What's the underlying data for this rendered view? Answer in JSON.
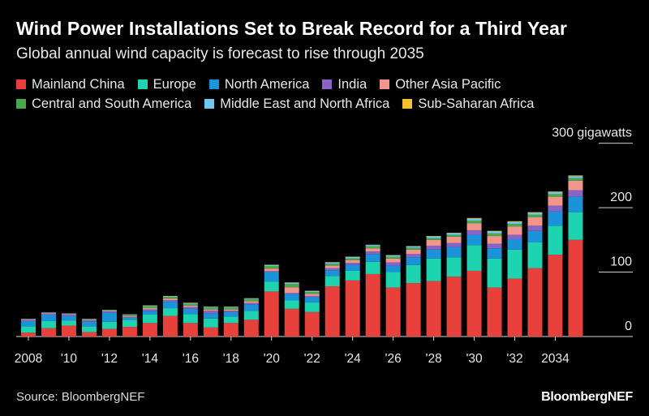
{
  "header": {
    "title": "Wind Power Installations Set to Break Record for a Third Year",
    "subtitle": "Global annual wind capacity is forecast to rise through 2035"
  },
  "footer": {
    "source": "Source: BloombergNEF",
    "brand": "BloombergNEF"
  },
  "chart_data": {
    "type": "bar",
    "stacked": true,
    "title": "Wind Power Installations Set to Break Record for a Third Year",
    "subtitle": "Global annual wind capacity is forecast to rise through 2035",
    "xlabel": "",
    "ylabel": "",
    "unit_label": "300 gigawatts",
    "ylim": [
      0,
      300
    ],
    "yticks": [
      0,
      100,
      200
    ],
    "xtick_labels": [
      "2008",
      "'10",
      "'12",
      "'14",
      "'16",
      "'18",
      "'20",
      "'22",
      "'24",
      "'26",
      "'28",
      "'30",
      "'32",
      "2034"
    ],
    "legend_position": "top",
    "categories": [
      "2008",
      "2009",
      "2010",
      "2011",
      "2012",
      "2013",
      "2014",
      "2015",
      "2016",
      "2017",
      "2018",
      "2019",
      "2020",
      "2021",
      "2022",
      "2023",
      "2024",
      "2025",
      "2026",
      "2027",
      "2028",
      "2029",
      "2030",
      "2031",
      "2032",
      "2033",
      "2034",
      "2035"
    ],
    "series": [
      {
        "name": "Mainland China",
        "color": "#e8403a",
        "values": [
          6,
          13,
          17,
          7,
          12,
          15,
          21,
          32,
          21,
          14,
          21,
          26,
          70,
          43,
          38,
          78,
          87,
          97,
          76,
          83,
          86,
          93,
          102,
          76,
          90,
          106,
          127,
          150
        ]
      },
      {
        "name": "Europe",
        "color": "#1ed3b0",
        "values": [
          10,
          11,
          8,
          9,
          11,
          11,
          13,
          12,
          14,
          14,
          10,
          14,
          15,
          13,
          15,
          16,
          15,
          19,
          24,
          28,
          35,
          30,
          40,
          45,
          45,
          40,
          45,
          43
        ]
      },
      {
        "name": "North America",
        "color": "#1a93d8",
        "values": [
          8,
          10,
          7,
          7,
          14,
          3,
          6,
          10,
          8,
          8,
          7,
          10,
          15,
          10,
          8,
          9,
          9,
          12,
          10,
          12,
          14,
          16,
          16,
          16,
          16,
          18,
          22,
          24
        ]
      },
      {
        "name": "India",
        "color": "#8a63c9",
        "values": [
          1.5,
          1.5,
          2,
          2,
          2,
          1.5,
          2,
          2.5,
          3,
          4,
          2,
          2,
          1.5,
          1.5,
          2,
          3,
          3.5,
          4,
          5,
          5,
          6,
          6,
          7,
          7,
          7,
          8,
          9,
          10
        ]
      },
      {
        "name": "Other Asia Pacific",
        "color": "#f3968a",
        "values": [
          1,
          1,
          1,
          1,
          1,
          1.5,
          2,
          2,
          2,
          2,
          2,
          3,
          4,
          9,
          3,
          4,
          4,
          5,
          6,
          7,
          9,
          10,
          11,
          12,
          13,
          13,
          14,
          15
        ]
      },
      {
        "name": "Central and South America",
        "color": "#48a84c",
        "values": [
          0.5,
          0.5,
          0.5,
          1,
          1,
          2,
          3,
          3,
          3,
          3,
          3,
          3,
          4,
          5,
          3,
          3,
          3,
          3,
          3,
          3,
          3,
          3,
          4,
          4,
          4,
          4,
          4,
          4
        ]
      },
      {
        "name": "Middle East and North Africa",
        "color": "#70c8f0",
        "values": [
          0.5,
          0.5,
          0.5,
          0.5,
          0.5,
          0.5,
          1,
          1,
          1,
          1,
          1,
          1,
          1.5,
          2,
          1.5,
          2,
          2,
          2,
          2,
          2,
          2.5,
          2.5,
          3,
          3,
          3,
          3,
          3,
          3
        ]
      },
      {
        "name": "Sub-Saharan Africa",
        "color": "#f2c230",
        "values": [
          0,
          0,
          0,
          0,
          0,
          0,
          0.3,
          0.3,
          0.5,
          0.3,
          0.3,
          0.5,
          0.5,
          0.5,
          0.5,
          0.5,
          0.5,
          0.5,
          0.5,
          0.5,
          0.5,
          0.5,
          1,
          1,
          1,
          1,
          1,
          1
        ]
      }
    ]
  }
}
